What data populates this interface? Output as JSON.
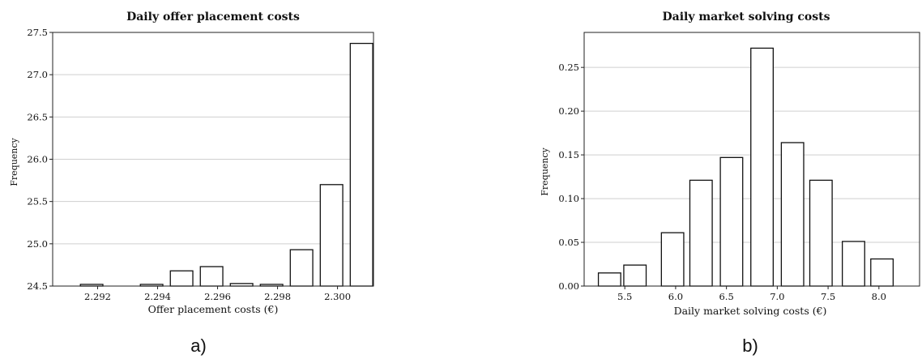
{
  "chart_data": [
    {
      "type": "bar",
      "title": "Daily offer placement costs",
      "xlabel": "Offer placement costs (€)",
      "ylabel": "Frequency",
      "panel_label": "a)",
      "xlim": [
        2.2905,
        2.3012
      ],
      "ylim": [
        24.5,
        27.5
      ],
      "xticks": [
        2.292,
        2.294,
        2.296,
        2.298,
        2.3
      ],
      "xtick_labels": [
        "2.292",
        "2.294",
        "2.296",
        "2.298",
        "2.300"
      ],
      "yticks": [
        24.5,
        25.0,
        25.5,
        26.0,
        26.5,
        27.0,
        27.5
      ],
      "ytick_labels": [
        "24.5",
        "25.0",
        "25.5",
        "26.0",
        "26.5",
        "27.0",
        "27.5"
      ],
      "grid": true,
      "bar_width": 0.00075,
      "x": [
        2.2918,
        2.2938,
        2.2948,
        2.2958,
        2.2968,
        2.2978,
        2.2988,
        2.2998,
        2.3008
      ],
      "values": [
        24.52,
        24.52,
        24.68,
        24.73,
        24.53,
        24.52,
        24.93,
        25.7,
        27.37
      ]
    },
    {
      "type": "bar",
      "title": "Daily market solving costs",
      "xlabel": "Daily market solving costs (€)",
      "ylabel": "Frequency",
      "panel_label": "b)",
      "xlim": [
        5.1,
        8.4
      ],
      "ylim": [
        0.0,
        0.29
      ],
      "xticks": [
        5.5,
        6.0,
        6.5,
        7.0,
        7.5,
        8.0
      ],
      "xtick_labels": [
        "5.5",
        "6.0",
        "6.5",
        "7.0",
        "7.5",
        "8.0"
      ],
      "yticks": [
        0.0,
        0.05,
        0.1,
        0.15,
        0.2,
        0.25
      ],
      "ytick_labels": [
        "0.00",
        "0.05",
        "0.10",
        "0.15",
        "0.20",
        "0.25"
      ],
      "grid": true,
      "bar_width": 0.22,
      "x": [
        5.35,
        5.6,
        5.97,
        6.25,
        6.55,
        6.85,
        7.15,
        7.43,
        7.75,
        8.03
      ],
      "values": [
        0.015,
        0.024,
        0.061,
        0.121,
        0.147,
        0.272,
        0.164,
        0.121,
        0.051,
        0.031
      ]
    }
  ]
}
